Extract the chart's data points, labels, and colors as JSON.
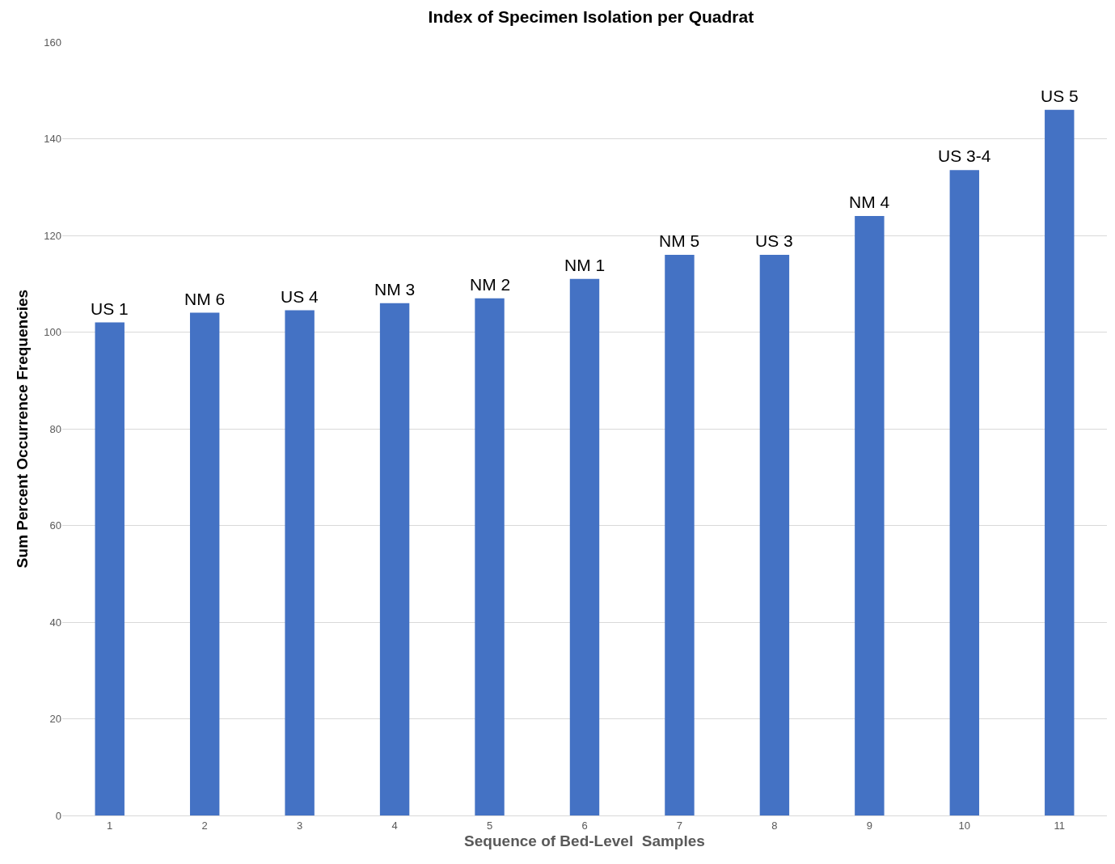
{
  "chart_data": {
    "type": "bar",
    "title": "Index of Specimen Isolation per Quadrat",
    "xlabel": "Sequence of Bed-Level  Samples",
    "ylabel": "Sum Percent Occurrence Frequencies",
    "categories": [
      "1",
      "2",
      "3",
      "4",
      "5",
      "6",
      "7",
      "8",
      "9",
      "10",
      "11"
    ],
    "values": [
      102,
      104,
      104.5,
      106,
      107,
      111,
      116,
      116,
      124,
      133.5,
      146
    ],
    "color": "#4472c4",
    "ylim": [
      0,
      160
    ],
    "yticks": [
      0,
      20,
      40,
      60,
      80,
      100,
      120,
      140,
      160
    ],
    "grid": "y",
    "annotations": [
      {
        "text": "US 1",
        "x": "1",
        "y": 102
      },
      {
        "text": "NM 6",
        "x": "2",
        "y": 104
      },
      {
        "text": "US 4",
        "x": "3",
        "y": 104.5
      },
      {
        "text": "NM 3",
        "x": "4",
        "y": 106
      },
      {
        "text": "NM 2",
        "x": "5",
        "y": 107
      },
      {
        "text": "NM 1",
        "x": "6",
        "y": 111
      },
      {
        "text": "NM 5",
        "x": "7",
        "y": 116
      },
      {
        "text": "US 3",
        "x": "8",
        "y": 116
      },
      {
        "text": "NM 4",
        "x": "9",
        "y": 124
      },
      {
        "text": "US 3-4",
        "x": "10",
        "y": 133.5
      },
      {
        "text": "US 5",
        "x": "11",
        "y": 146
      }
    ]
  }
}
